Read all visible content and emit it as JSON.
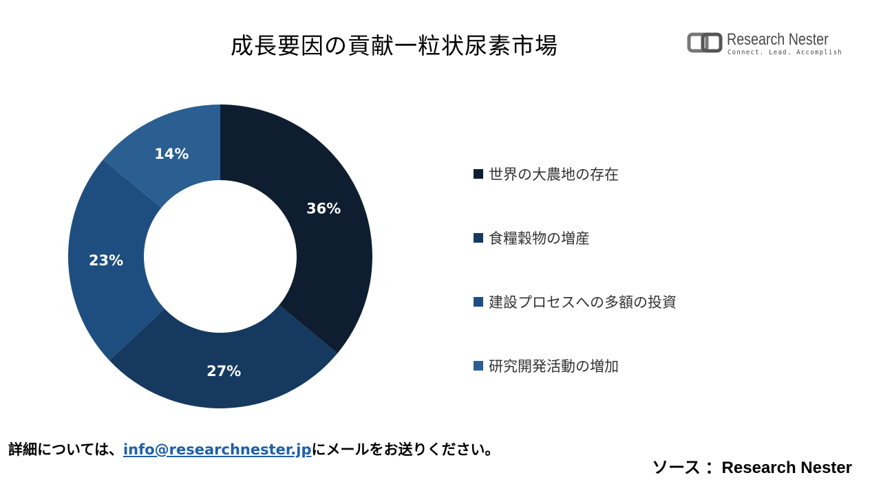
{
  "title": "成長要因の貢献一粒状尿素市場",
  "logo": {
    "name": "Research Nester",
    "tagline": "Connect. Lead. Accomplish"
  },
  "chart_data": {
    "type": "pie",
    "donut": true,
    "categories": [
      "世界の大農地の存在",
      "食糧穀物の増産",
      "建設プロセスへの多額の投資",
      "研究開発活動の増加"
    ],
    "values": [
      36,
      27,
      23,
      14
    ],
    "labels": [
      "36%",
      "27%",
      "23%",
      "14%"
    ],
    "colors": [
      "#0e1e30",
      "#163a5f",
      "#1e4e80",
      "#2b5f91"
    ],
    "legend_position": "right"
  },
  "footer": {
    "contact_prefix": "詳細については、",
    "contact_email": "info@researchnester.jp",
    "contact_suffix": "にメールをお送りください。",
    "source": "ソース ：Research Nester"
  }
}
